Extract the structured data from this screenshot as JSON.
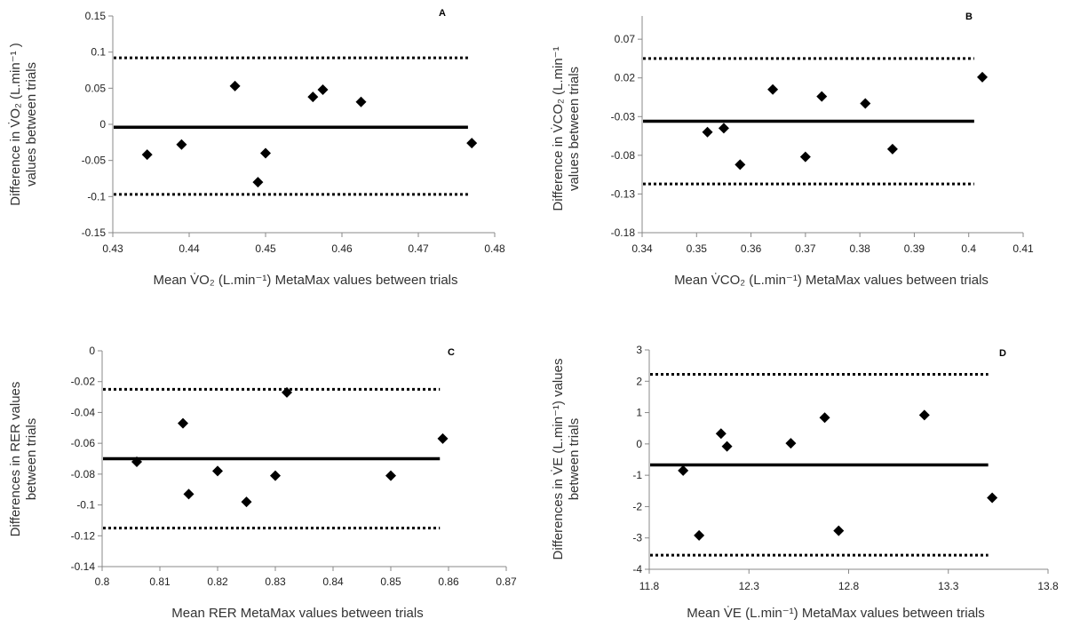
{
  "chart_data": [
    {
      "type": "scatter",
      "panel_label": "A",
      "xlabel": "Mean V̇O₂ (L.min⁻¹) MetaMax values between trials",
      "ylabel_lines": [
        "Difference in V̇O₂ (L.min⁻¹ )",
        "values between trials"
      ],
      "xlim": [
        0.43,
        0.48
      ],
      "ylim": [
        -0.15,
        0.15
      ],
      "xticks": [
        "0.43",
        "0.44",
        "0.45",
        "0.46",
        "0.47",
        "0.48"
      ],
      "yticks": [
        "0.15",
        "0.1",
        "0.05",
        "0",
        "-0.05",
        "-0.1",
        "-0.15"
      ],
      "points": [
        {
          "x": 0.4345,
          "y": -0.042
        },
        {
          "x": 0.439,
          "y": -0.028
        },
        {
          "x": 0.446,
          "y": 0.053
        },
        {
          "x": 0.449,
          "y": -0.08
        },
        {
          "x": 0.45,
          "y": -0.04
        },
        {
          "x": 0.4562,
          "y": 0.038
        },
        {
          "x": 0.4575,
          "y": 0.048
        },
        {
          "x": 0.4625,
          "y": 0.031
        },
        {
          "x": 0.477,
          "y": -0.026
        }
      ],
      "mean_bias": -0.004,
      "upper_loa": 0.092,
      "lower_loa": -0.097,
      "line_x_range": [
        0.43,
        0.4765
      ],
      "marker_color": "#000000"
    },
    {
      "type": "scatter",
      "panel_label": "B",
      "xlabel": "Mean V̇CO₂ (L.min⁻¹) MetaMax values between trials",
      "ylabel_lines": [
        "Difference in V̇CO₂ (L.min⁻¹",
        "values between trials"
      ],
      "xlim": [
        0.34,
        0.41
      ],
      "ylim": [
        -0.18,
        0.1
      ],
      "xticks": [
        "0.34",
        "0.35",
        "0.36",
        "0.37",
        "0.38",
        "0.39",
        "0.4",
        "0.41"
      ],
      "yticks": [
        "0.07",
        "0.02",
        "-0.03",
        "-0.08",
        "-0.13",
        "-0.18"
      ],
      "ytick_values": [
        0.07,
        0.02,
        -0.03,
        -0.08,
        -0.13,
        -0.18
      ],
      "points": [
        {
          "x": 0.352,
          "y": -0.05
        },
        {
          "x": 0.355,
          "y": -0.045
        },
        {
          "x": 0.358,
          "y": -0.092
        },
        {
          "x": 0.364,
          "y": 0.005
        },
        {
          "x": 0.37,
          "y": -0.082
        },
        {
          "x": 0.373,
          "y": -0.004
        },
        {
          "x": 0.381,
          "y": -0.013
        },
        {
          "x": 0.386,
          "y": -0.072
        },
        {
          "x": 0.4025,
          "y": 0.021
        }
      ],
      "mean_bias": -0.036,
      "upper_loa": 0.045,
      "lower_loa": -0.117,
      "line_x_range": [
        0.34,
        0.401
      ],
      "marker_color": "#000000"
    },
    {
      "type": "scatter",
      "panel_label": "C",
      "xlabel": "Mean RER MetaMax values between trials",
      "ylabel_lines": [
        "Differences in RER values",
        "between trials"
      ],
      "xlim": [
        0.8,
        0.87
      ],
      "ylim": [
        -0.14,
        0
      ],
      "xticks": [
        "0.8",
        "0.81",
        "0.82",
        "0.83",
        "0.84",
        "0.85",
        "0.86",
        "0.87"
      ],
      "yticks": [
        "0",
        "-0.02",
        "-0.04",
        "-0.06",
        "-0.08",
        "-0.1",
        "-0.12",
        "-0.14"
      ],
      "points": [
        {
          "x": 0.806,
          "y": -0.072
        },
        {
          "x": 0.814,
          "y": -0.047
        },
        {
          "x": 0.815,
          "y": -0.093
        },
        {
          "x": 0.82,
          "y": -0.078
        },
        {
          "x": 0.825,
          "y": -0.098
        },
        {
          "x": 0.83,
          "y": -0.081
        },
        {
          "x": 0.832,
          "y": -0.027
        },
        {
          "x": 0.85,
          "y": -0.081
        },
        {
          "x": 0.859,
          "y": -0.057
        }
      ],
      "mean_bias": -0.07,
      "upper_loa": -0.025,
      "lower_loa": -0.115,
      "line_x_range": [
        0.8,
        0.8585
      ],
      "marker_color": "#000000"
    },
    {
      "type": "scatter",
      "panel_label": "D",
      "xlabel": "Mean V̇E (L.min⁻¹) MetaMax values between trials",
      "ylabel_lines": [
        "Differences in V̇E (L.min⁻¹) values",
        "between trials"
      ],
      "xlim": [
        11.8,
        13.8
      ],
      "ylim": [
        -4,
        3
      ],
      "xticks": [
        "11.8",
        "12.3",
        "12.8",
        "13.3",
        "13.8"
      ],
      "yticks": [
        "3",
        "2",
        "1",
        "0",
        "-1",
        "-2",
        "-3",
        "-4"
      ],
      "points": [
        {
          "x": 11.97,
          "y": -0.85
        },
        {
          "x": 12.05,
          "y": -2.92
        },
        {
          "x": 12.16,
          "y": 0.33
        },
        {
          "x": 12.19,
          "y": -0.08
        },
        {
          "x": 12.51,
          "y": 0.02
        },
        {
          "x": 12.68,
          "y": 0.84
        },
        {
          "x": 12.75,
          "y": -2.77
        },
        {
          "x": 13.18,
          "y": 0.92
        },
        {
          "x": 13.52,
          "y": -1.72
        }
      ],
      "mean_bias": -0.67,
      "upper_loa": 2.22,
      "lower_loa": -3.55,
      "line_x_range": [
        11.8,
        13.5
      ],
      "marker_color": "#000000"
    }
  ]
}
